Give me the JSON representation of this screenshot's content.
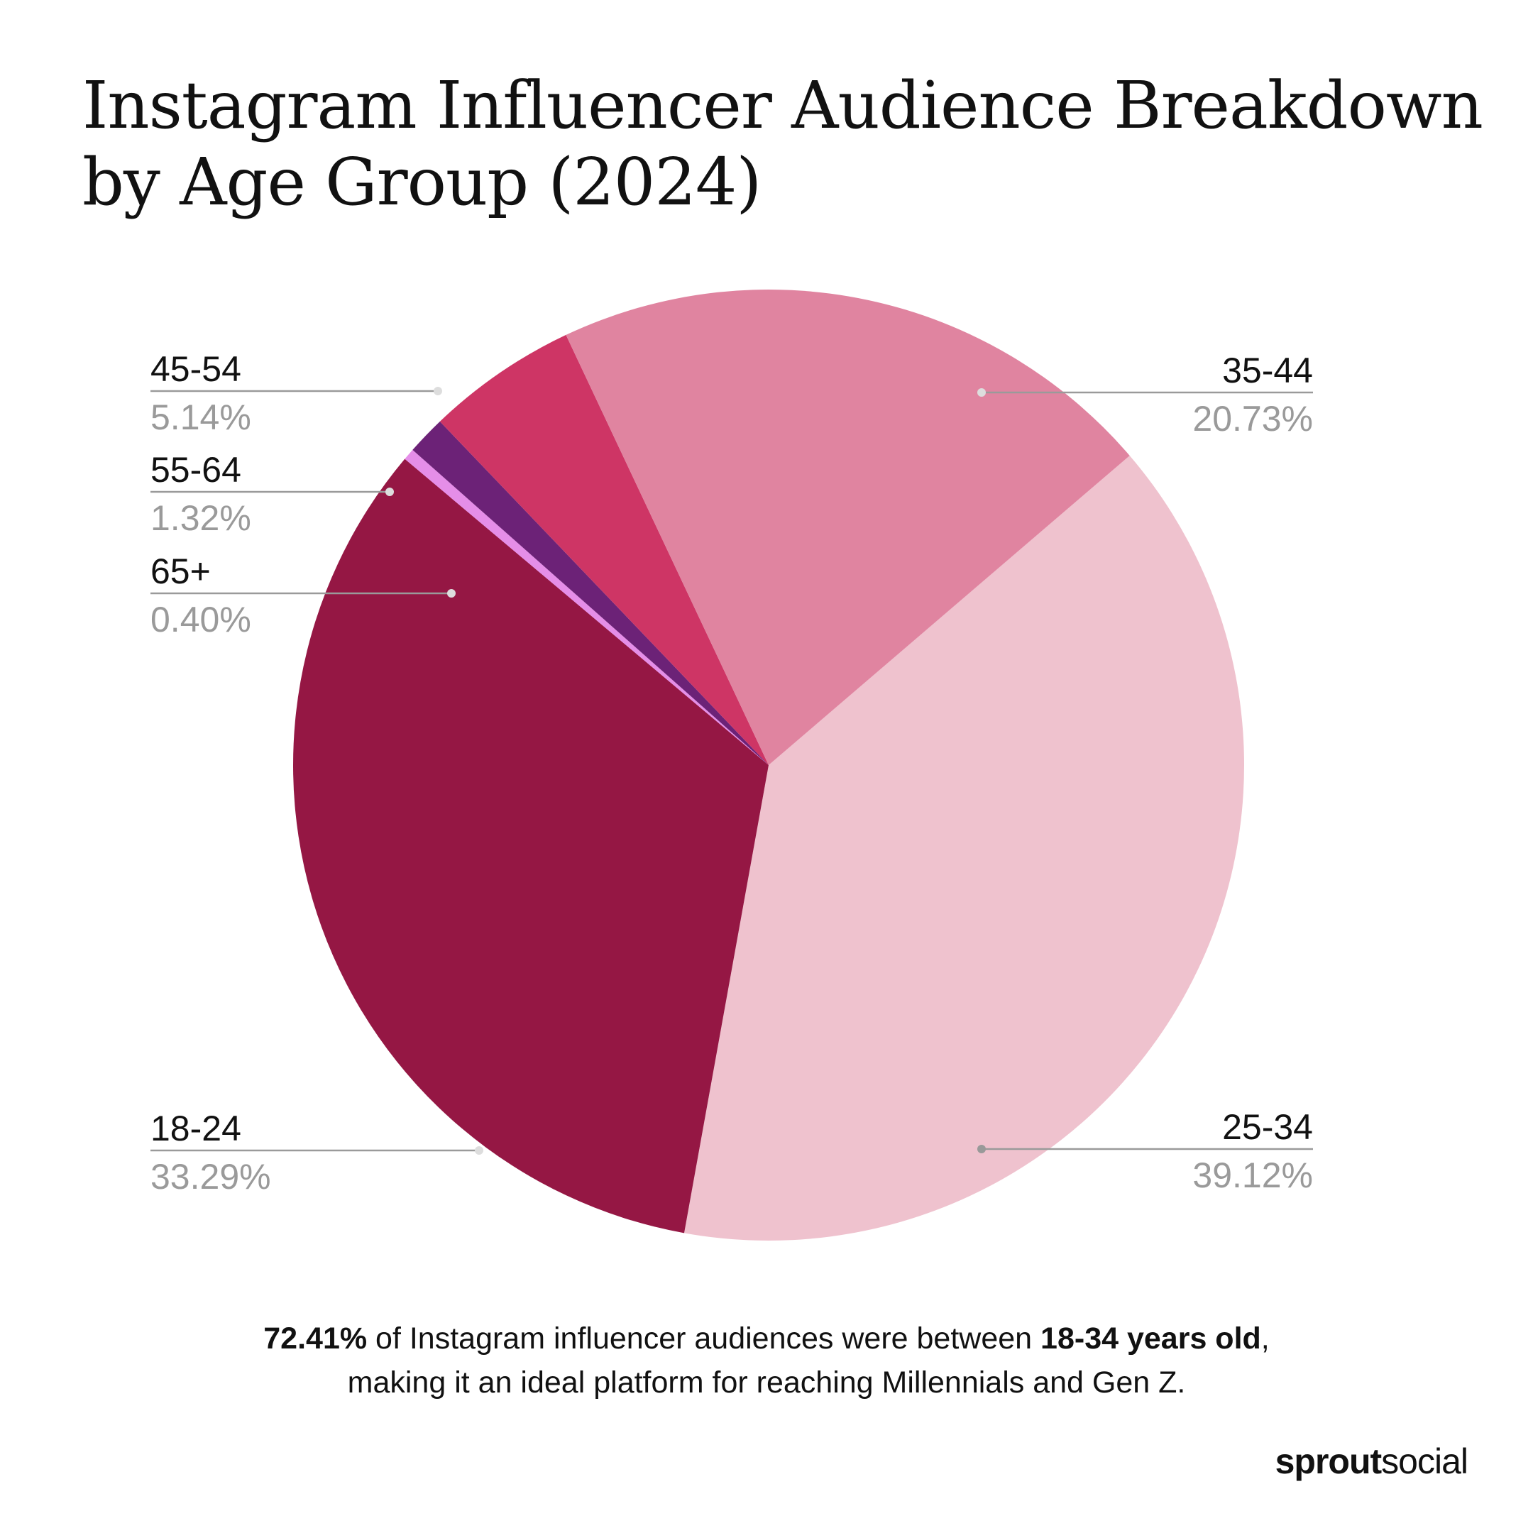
{
  "title_line1": "Instagram Influencer Audience Breakdown",
  "title_line2": "by Age Group (2024)",
  "chart_data": {
    "type": "pie",
    "title": "Instagram Influencer Audience Breakdown by Age Group (2024)",
    "unit": "%",
    "start_angle_deg": 49.4,
    "direction": "clockwise",
    "slices": [
      {
        "label": "25-34",
        "value": 39.12,
        "display": "39.12%",
        "color": "#EFC2CE",
        "dot_color": "#999999",
        "label_side": "right-bottom"
      },
      {
        "label": "18-24",
        "value": 33.29,
        "display": "33.29%",
        "color": "#951744",
        "dot_color": "#dddddd",
        "label_side": "left-bottom"
      },
      {
        "label": "65+",
        "value": 0.4,
        "display": "0.40%",
        "color": "#E58EE8",
        "dot_color": "#dddddd",
        "label_side": "left"
      },
      {
        "label": "55-64",
        "value": 1.32,
        "display": "1.32%",
        "color": "#6C2277",
        "dot_color": "#dddddd",
        "label_side": "left"
      },
      {
        "label": "45-54",
        "value": 5.14,
        "display": "5.14%",
        "color": "#CE3565",
        "dot_color": "#dddddd",
        "label_side": "left"
      },
      {
        "label": "35-44",
        "value": 20.73,
        "display": "20.73%",
        "color": "#E084A0",
        "dot_color": "#dddddd",
        "label_side": "right-top"
      }
    ]
  },
  "summary": {
    "bold1": "72.41%",
    "text1": " of Instagram influencer audiences were between ",
    "bold2": "18-34 years old",
    "text2": ",",
    "line2": "making it an ideal platform for reaching Millennials and Gen Z."
  },
  "logo": {
    "bold": "sprout",
    "light": "social"
  }
}
